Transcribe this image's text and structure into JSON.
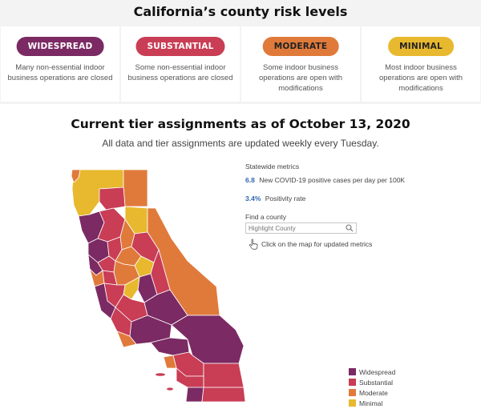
{
  "header": {
    "title": "California’s county risk levels"
  },
  "tiers": [
    {
      "label": "WIDESPREAD",
      "color": "#7b2a63",
      "text_color": "#ffffff",
      "desc": "Many non-essential indoor business operations are closed"
    },
    {
      "label": "SUBSTANTIAL",
      "color": "#c93d55",
      "text_color": "#ffffff",
      "desc": "Some non-essential indoor business operations are closed"
    },
    {
      "label": "MODERATE",
      "color": "#e07a3b",
      "text_color": "#222222",
      "desc": "Some indoor business operations are open with modifications"
    },
    {
      "label": "MINIMAL",
      "color": "#e8b92e",
      "text_color": "#222222",
      "desc": "Most indoor business operations are open with modifications"
    }
  ],
  "assignments": {
    "title": "Current tier assignments as of October 13, 2020",
    "caption": "All data and tier assignments are updated weekly every Tuesday."
  },
  "metrics": {
    "label": "Statewide metrics",
    "cases_value": "6.8",
    "cases_label": "New COVID-19 positive cases per day per 100K",
    "positivity_value": "3.4%",
    "positivity_label": "Positivity rate",
    "find_label": "Find a county",
    "search_placeholder": "Highlight County",
    "click_hint": "Click on the map for updated metrics"
  },
  "legend": [
    {
      "label": "Widespread",
      "color": "#7b2a63"
    },
    {
      "label": "Substantial",
      "color": "#c93d55"
    },
    {
      "label": "Moderate",
      "color": "#e07a3b"
    },
    {
      "label": "Minimal",
      "color": "#e8b92e"
    }
  ],
  "icons": [
    "search-icon",
    "hand-pointer-icon"
  ]
}
